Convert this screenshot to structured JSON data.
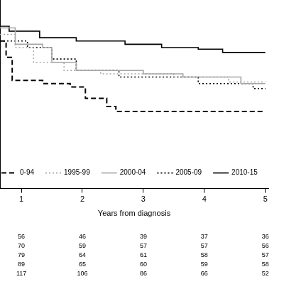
{
  "chart_data": {
    "type": "step",
    "xlabel": "Years from diagnosis",
    "xlim": [
      0.65,
      5.05
    ],
    "xticks": [
      1,
      2,
      3,
      4,
      5
    ],
    "ylim": [
      0,
      1.15
    ],
    "yticks": [],
    "grid": false,
    "tick_labels": "x",
    "legend": "bottom",
    "series": [
      {
        "name": "0-94",
        "color": "#000000",
        "line_style": "dashed",
        "x": [
          0.65,
          0.75,
          0.85,
          1.35,
          1.8,
          2.05,
          2.4,
          2.55,
          5.0
        ],
        "values": [
          0.9,
          0.8,
          0.66,
          0.64,
          0.62,
          0.55,
          0.5,
          0.47,
          0.47
        ],
        "at_risk": [
          56,
          46,
          39,
          37,
          36
        ]
      },
      {
        "name": "1995-99",
        "color": "#a6a6a6",
        "line_style": "dotted",
        "x": [
          0.65,
          0.9,
          1.2,
          1.7,
          2.3,
          3.5,
          4.4,
          5.0
        ],
        "values": [
          0.94,
          0.86,
          0.77,
          0.72,
          0.7,
          0.68,
          0.65,
          0.65
        ],
        "at_risk": [
          70,
          59,
          57,
          57,
          56
        ]
      },
      {
        "name": "2000-04",
        "color": "#a6a6a6",
        "line_style": "solid",
        "x": [
          0.65,
          0.9,
          1.35,
          1.5,
          1.9,
          3.0,
          3.65,
          4.6,
          5.0
        ],
        "values": [
          0.98,
          0.88,
          0.86,
          0.77,
          0.72,
          0.7,
          0.68,
          0.64,
          0.64
        ],
        "at_risk": [
          79,
          64,
          61,
          58,
          57
        ]
      },
      {
        "name": "2005-09",
        "color": "#000000",
        "line_style": "dotted",
        "x": [
          0.65,
          1.1,
          1.5,
          1.9,
          2.6,
          3.9,
          4.8,
          5.0
        ],
        "values": [
          0.9,
          0.86,
          0.79,
          0.72,
          0.68,
          0.64,
          0.61,
          0.61
        ],
        "at_risk": [
          89,
          65,
          60,
          59,
          58
        ]
      },
      {
        "name": "2010-15",
        "color": "#000000",
        "line_style": "solid",
        "x": [
          0.65,
          0.8,
          1.3,
          1.9,
          2.7,
          3.3,
          3.9,
          4.3,
          5.0
        ],
        "values": [
          0.99,
          0.96,
          0.92,
          0.9,
          0.88,
          0.86,
          0.85,
          0.83,
          0.83
        ],
        "at_risk": [
          117,
          106,
          86,
          66,
          52
        ]
      }
    ]
  }
}
